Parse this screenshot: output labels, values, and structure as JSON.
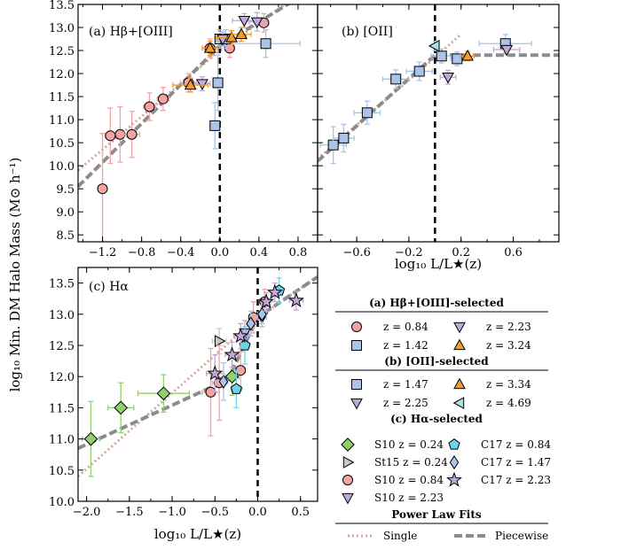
{
  "chart_data": [
    {
      "type": "scatter",
      "panel_label": "(a) Hβ+[OIII]",
      "xlim": [
        -1.45,
        1.0
      ],
      "ylim": [
        8.35,
        13.5
      ],
      "xticks": [
        -1.2,
        -0.8,
        -0.4,
        0.0,
        0.4,
        0.8
      ],
      "xtick_labels": [
        "−1.2",
        "−0.8",
        "−0.4",
        "0.0",
        "0.4",
        "0.8"
      ],
      "yticks": [
        8.5,
        9.0,
        9.5,
        10.0,
        10.5,
        11.0,
        11.5,
        12.0,
        12.5,
        13.0,
        13.5
      ],
      "ytick_labels": [
        "8.5",
        "9.0",
        "9.5",
        "10.0",
        "10.5",
        "11.0",
        "11.5",
        "12.0",
        "12.5",
        "13.0",
        "13.5"
      ],
      "vline": 0.0,
      "fits": [
        {
          "name": "Single",
          "points": [
            [
              -1.45,
              9.9
            ],
            [
              0.0,
              12.5
            ],
            [
              1.0,
              14.0
            ]
          ]
        },
        {
          "name": "Piecewise",
          "points": [
            [
              -1.45,
              9.55
            ],
            [
              0.0,
              12.6
            ],
            [
              1.0,
              13.9
            ]
          ]
        }
      ],
      "series": [
        {
          "name": "z = 0.84",
          "marker": "circle",
          "color": "#f4a3a3",
          "edge": "#c1272d",
          "points": [
            [
              -1.2,
              9.5,
              0.03,
              1.2
            ],
            [
              -1.12,
              10.65,
              0.05,
              0.6
            ],
            [
              -1.02,
              10.68,
              0.08,
              0.6
            ],
            [
              -0.9,
              10.68,
              0.08,
              0.5
            ],
            [
              -0.72,
              11.28,
              0.06,
              0.3
            ],
            [
              -0.58,
              11.45,
              0.06,
              0.25
            ],
            [
              -0.32,
              11.8,
              0.08,
              0.2
            ],
            [
              -0.1,
              12.55,
              0.06,
              0.2
            ],
            [
              0.1,
              12.55,
              0.05,
              0.2
            ],
            [
              0.45,
              13.1,
              0.05,
              0.2
            ]
          ]
        },
        {
          "name": "z = 1.42",
          "marker": "square",
          "color": "#a9c4e8",
          "edge": "#2b5ea8",
          "points": [
            [
              -0.05,
              10.87,
              0.05,
              0.5
            ],
            [
              -0.02,
              11.8,
              0.05,
              0.6
            ],
            [
              0.0,
              12.75,
              0.05,
              0.2
            ],
            [
              0.06,
              12.75,
              0.06,
              0.2
            ],
            [
              0.47,
              12.65,
              0.35,
              0.3
            ]
          ]
        },
        {
          "name": "z = 2.23",
          "marker": "triangle-down",
          "color": "#c0a8d8",
          "edge": "#6a4a8a",
          "points": [
            [
              -0.18,
              11.78,
              0.08,
              0.15
            ],
            [
              0.03,
              12.75,
              0.05,
              0.15
            ],
            [
              0.25,
              13.15,
              0.12,
              0.15
            ],
            [
              0.38,
              13.12,
              0.08,
              0.2
            ]
          ]
        },
        {
          "name": "z = 3.24",
          "marker": "triangle-up",
          "color": "#f29c2b",
          "edge": "#a85c00",
          "points": [
            [
              -0.3,
              11.75,
              0.18,
              0.15
            ],
            [
              -0.1,
              12.55,
              0.08,
              0.15
            ],
            [
              0.12,
              12.78,
              0.15,
              0.15
            ],
            [
              0.22,
              12.85,
              0.1,
              0.15
            ]
          ]
        }
      ]
    },
    {
      "type": "scatter",
      "panel_label": "(b) [OII]",
      "xlim": [
        -0.9,
        0.95
      ],
      "ylim": [
        8.35,
        13.5
      ],
      "xticks": [
        -0.6,
        -0.2,
        0.2,
        0.6
      ],
      "xtick_labels": [
        "−0.6",
        "−0.2",
        "0.2",
        "0.6"
      ],
      "vline": 0.0,
      "fits": [
        {
          "name": "Single",
          "points": [
            [
              -0.9,
              10.15
            ],
            [
              0.0,
              12.35
            ],
            [
              0.2,
              12.85
            ]
          ]
        },
        {
          "name": "Piecewise",
          "points": [
            [
              -0.9,
              10.1
            ],
            [
              0.0,
              12.4
            ],
            [
              0.95,
              12.4
            ]
          ]
        }
      ],
      "series": [
        {
          "name": "z = 1.47",
          "marker": "square",
          "color": "#a9c4e8",
          "edge": "#2b5ea8",
          "points": [
            [
              -0.78,
              10.45,
              0.1,
              0.4
            ],
            [
              -0.7,
              10.6,
              0.08,
              0.3
            ],
            [
              -0.52,
              11.15,
              0.1,
              0.25
            ],
            [
              -0.3,
              11.88,
              0.1,
              0.2
            ],
            [
              -0.12,
              12.05,
              0.1,
              0.2
            ],
            [
              0.05,
              12.38,
              0.08,
              0.15
            ],
            [
              0.17,
              12.32,
              0.05,
              0.15
            ],
            [
              0.54,
              12.65,
              0.2,
              0.2
            ]
          ]
        },
        {
          "name": "z = 2.25",
          "marker": "triangle-down",
          "color": "#c0a8d8",
          "edge": "#6a4a8a",
          "points": [
            [
              0.1,
              11.92,
              0.06,
              0.15
            ],
            [
              0.55,
              12.52,
              0.1,
              0.1
            ]
          ]
        },
        {
          "name": "z = 3.34",
          "marker": "triangle-up",
          "color": "#f29c2b",
          "edge": "#a85c00",
          "points": [
            [
              0.25,
              12.38,
              0.05,
              0.1
            ]
          ]
        },
        {
          "name": "z = 4.69",
          "marker": "triangle-left",
          "color": "#a6e3e1",
          "edge": "#1b9e9a",
          "points": [
            [
              0.0,
              12.6,
              0.03,
              0.1
            ]
          ]
        }
      ]
    },
    {
      "type": "scatter",
      "panel_label": "(c) Hα",
      "xlim": [
        -2.1,
        0.7
      ],
      "ylim": [
        10.0,
        13.75
      ],
      "xticks": [
        -2.0,
        -1.5,
        -1.0,
        -0.5,
        0.0,
        0.5
      ],
      "xtick_labels": [
        "−2.0",
        "−1.5",
        "−1.0",
        "−0.5",
        "0.0",
        "0.5"
      ],
      "yticks": [
        10.0,
        10.5,
        11.0,
        11.5,
        12.0,
        12.5,
        13.0,
        13.5
      ],
      "ytick_labels": [
        "10.0",
        "10.5",
        "11.0",
        "11.5",
        "12.0",
        "12.5",
        "13.0",
        "13.5"
      ],
      "vline": 0.0,
      "fits": [
        {
          "name": "Single",
          "points": [
            [
              -2.1,
              10.4
            ],
            [
              0.0,
              12.95
            ],
            [
              0.7,
              13.6
            ]
          ]
        },
        {
          "name": "Piecewise",
          "points": [
            [
              -2.1,
              10.85
            ],
            [
              -0.35,
              11.95
            ],
            [
              0.0,
              12.95
            ],
            [
              0.7,
              13.6
            ]
          ]
        }
      ],
      "series": [
        {
          "name": "S10 z = 0.24",
          "marker": "diamond",
          "color": "#8fd16a",
          "edge": "#2f7a10",
          "points": [
            [
              -1.95,
              11.0,
              0.1,
              0.6
            ],
            [
              -1.6,
              11.5,
              0.15,
              0.4
            ],
            [
              -1.1,
              11.73,
              0.3,
              0.3
            ],
            [
              -0.3,
              12.0,
              0.08,
              0.3
            ]
          ]
        },
        {
          "name": "St15 z = 0.24",
          "marker": "triangle-right",
          "color": "#c8c8c8",
          "edge": "#555555",
          "points": [
            [
              -0.45,
              12.57,
              0.08,
              0.2
            ]
          ]
        },
        {
          "name": "S10 z = 0.84",
          "marker": "circle",
          "color": "#f4a3a3",
          "edge": "#c1272d",
          "points": [
            [
              -0.55,
              11.75,
              0.1,
              0.7
            ],
            [
              -0.45,
              11.9,
              0.08,
              0.6
            ],
            [
              -0.2,
              12.1,
              0.05,
              0.3
            ],
            [
              -0.05,
              12.95,
              0.05,
              0.25
            ],
            [
              0.08,
              13.2,
              0.05,
              0.2
            ]
          ]
        },
        {
          "name": "S10 z = 2.23",
          "marker": "triangle-down",
          "color": "#c0a8d8",
          "edge": "#6a4a8a",
          "points": [
            [
              -0.15,
              12.7,
              0.05,
              0.2
            ],
            [
              0.05,
              12.95,
              0.05,
              0.15
            ]
          ]
        },
        {
          "name": "C17 z = 0.84",
          "marker": "pentagon",
          "color": "#6fd3e8",
          "edge": "#0b7a9a",
          "points": [
            [
              -0.25,
              11.8,
              0.06,
              0.3
            ],
            [
              -0.15,
              12.5,
              0.05,
              0.3
            ],
            [
              0.25,
              13.38,
              0.05,
              0.2
            ]
          ]
        },
        {
          "name": "C17 z = 1.47",
          "marker": "thin-diamond",
          "color": "#a9c4e8",
          "edge": "#2b5ea8",
          "points": [
            [
              -0.4,
              11.92,
              0.05,
              0.3
            ],
            [
              -0.08,
              12.85,
              0.05,
              0.2
            ],
            [
              0.05,
              13.0,
              0.05,
              0.15
            ]
          ]
        },
        {
          "name": "C17 z = 2.23",
          "marker": "star",
          "color": "#c0a8d8",
          "edge": "#6a4a8a",
          "points": [
            [
              -0.5,
              12.05,
              0.1,
              0.3
            ],
            [
              -0.3,
              12.35,
              0.08,
              0.2
            ],
            [
              -0.2,
              12.65,
              0.08,
              0.2
            ],
            [
              0.1,
              13.2,
              0.05,
              0.15
            ],
            [
              0.2,
              13.35,
              0.05,
              0.15
            ],
            [
              0.45,
              13.22,
              0.08,
              0.15
            ]
          ]
        }
      ]
    }
  ],
  "axes_text": {
    "ylabel": "log₁₀ Min. DM Halo Mass (M⊙ h⁻¹)",
    "xlabel_top": "log₁₀ L/L★(z)",
    "xlabel_bottom": "log₁₀ L/L★(z)"
  },
  "legend": {
    "section_a": "(a) Hβ+[OIII]-selected",
    "section_b": "(b) [OII]-selected",
    "section_c": "(c) Hα-selected",
    "section_fits": "Power Law Fits",
    "fit_single": "Single",
    "fit_piecewise": "Piecewise"
  },
  "colors": {
    "single_fit": "#d9a6a0",
    "piecewise_fit": "#8c8c8c",
    "vline": "#000000"
  }
}
